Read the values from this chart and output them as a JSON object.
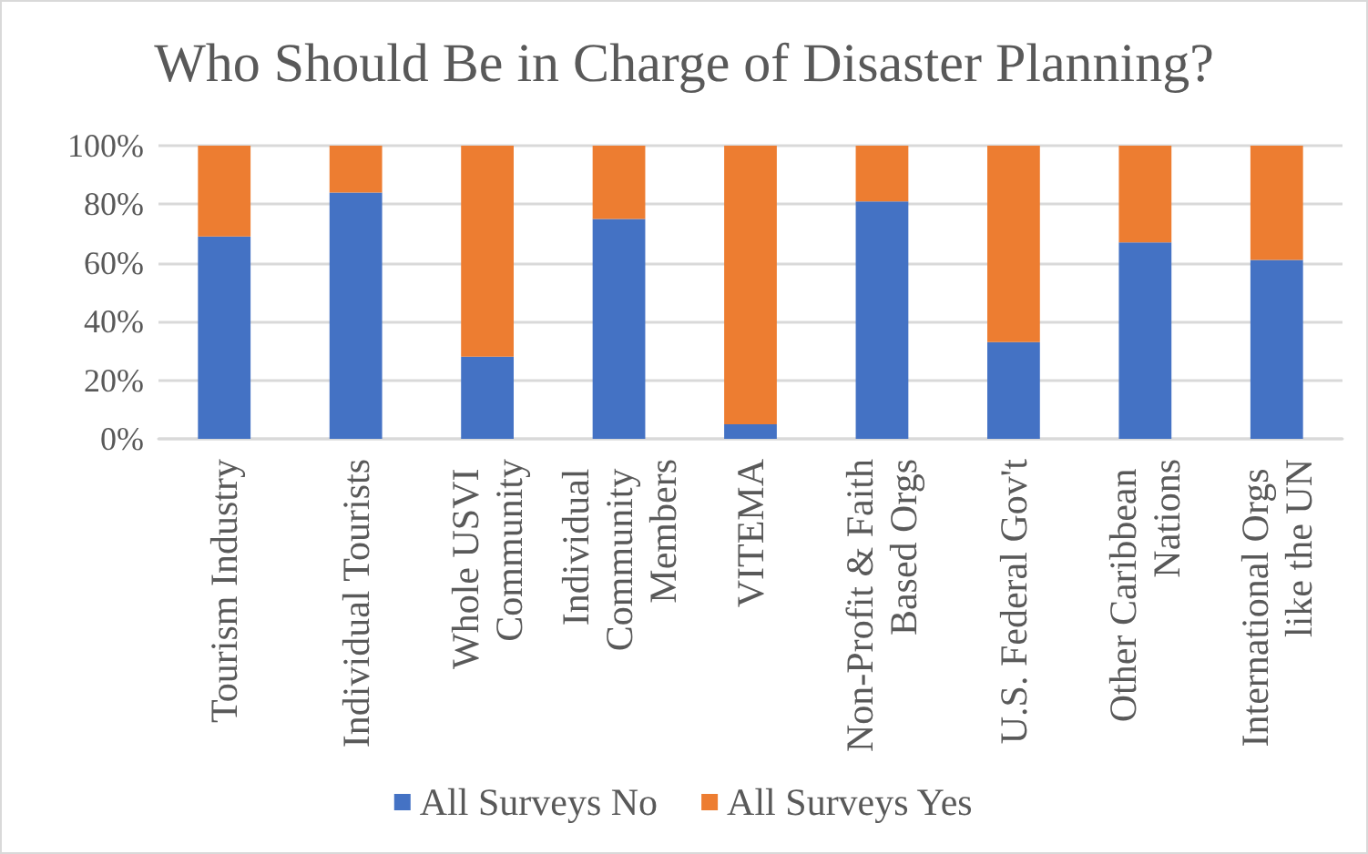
{
  "chart_data": {
    "type": "bar",
    "title": "Who Should Be in Charge of Disaster Planning?",
    "categories": [
      "Tourism Industry",
      "Individual Tourists",
      "Whole USVI Community",
      "Individual Community Members",
      "VITEMA",
      "Non-Profit & Faith Based Orgs",
      "U.S. Federal Gov't",
      "Other Caribbean Nations",
      "International Orgs like the UN"
    ],
    "series": [
      {
        "name": "All Surveys No",
        "color": "#4472c4",
        "values": [
          69,
          84,
          28,
          75,
          5,
          81,
          33,
          67,
          61
        ]
      },
      {
        "name": "All Surveys Yes",
        "color": "#ed7d31",
        "values": [
          31,
          16,
          72,
          25,
          95,
          19,
          67,
          33,
          39
        ]
      }
    ],
    "stacked": true,
    "ylim": [
      0,
      100
    ],
    "yticks": [
      {
        "value": 0,
        "label": "0%"
      },
      {
        "value": 20,
        "label": "20%"
      },
      {
        "value": 40,
        "label": "40%"
      },
      {
        "value": 60,
        "label": "60%"
      },
      {
        "value": 80,
        "label": "80%"
      },
      {
        "value": 100,
        "label": "100%"
      }
    ],
    "grid": "y",
    "legend": "bottom"
  }
}
